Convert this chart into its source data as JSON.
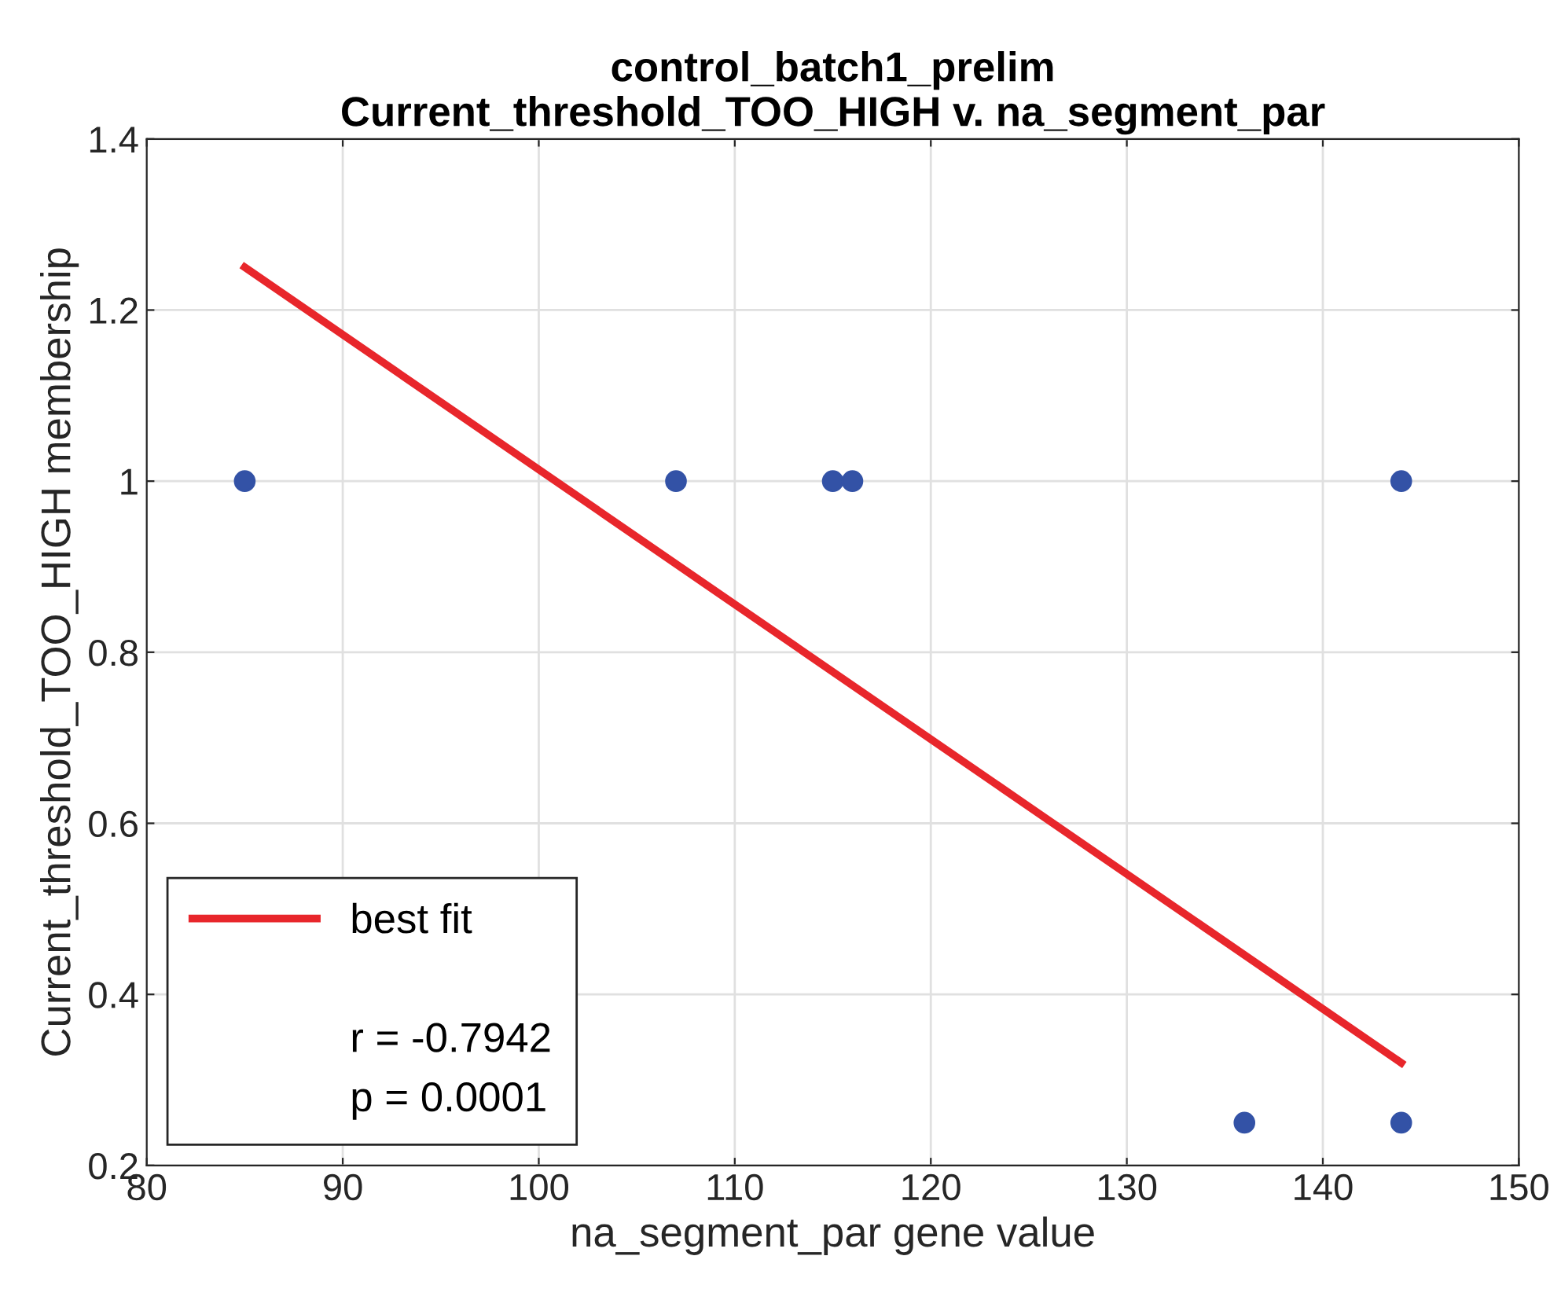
{
  "chart_data": {
    "type": "scatter",
    "title": "control_batch1_prelim\nCurrent_threshold_TOO_HIGH v. na_segment_par",
    "xlabel": "na_segment_par gene value",
    "ylabel": "Current_threshold_TOO_HIGH membership",
    "series": [
      {
        "color": "#3352a6",
        "x": [
          85,
          107,
          115,
          116,
          144,
          136,
          144
        ],
        "values": [
          1,
          1,
          1,
          1,
          1,
          0.25,
          0.25
        ],
        "marker": "circle"
      },
      {
        "type": "line",
        "name": "best fit",
        "color": "#e8262b",
        "x": [
          85,
          144
        ],
        "values": [
          1.25,
          0.32
        ],
        "marker": "none",
        "line_style": "solid"
      }
    ],
    "annotations": [
      "r = -0.7942",
      "p = 0.0001"
    ],
    "xlim": [
      80,
      150
    ],
    "xticks": [
      80,
      90,
      100,
      110,
      120,
      130,
      140,
      150
    ],
    "ylim": [
      0.2,
      1.4
    ],
    "yticks": [
      0.2,
      0.4,
      0.6,
      0.8,
      1,
      1.2,
      1.4
    ],
    "grid": true,
    "legend": "bottom left"
  }
}
